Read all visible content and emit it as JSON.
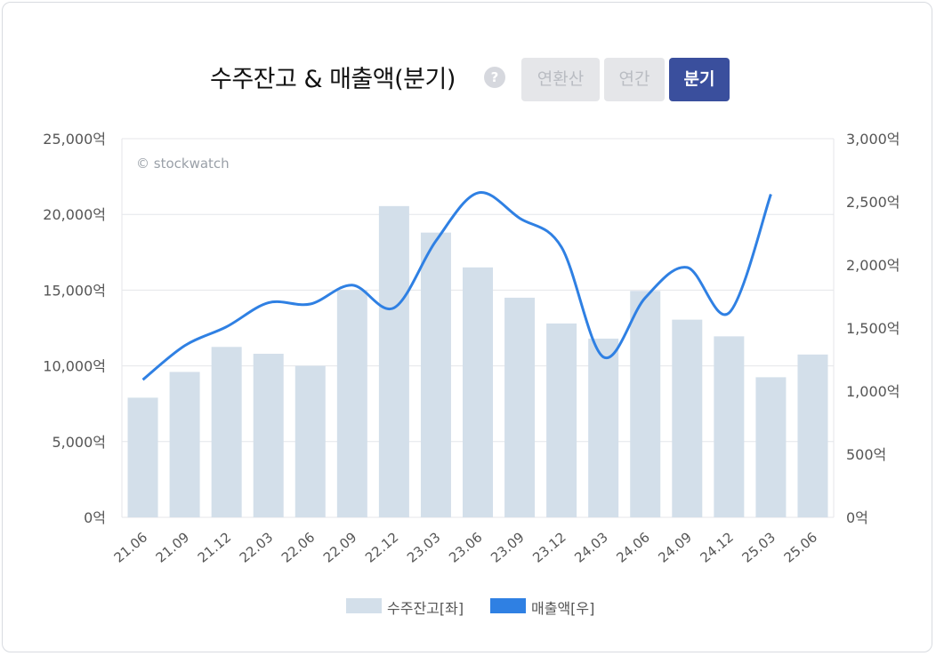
{
  "header": {
    "title": "수주잔고 & 매출액(분기)",
    "help_icon": "?",
    "segments": [
      "연환산",
      "연간",
      "분기"
    ],
    "active_segment": "분기"
  },
  "colors": {
    "bar": "#d3dfea",
    "line": "#2f80e3",
    "grid": "#e4e6ea",
    "active_tab": "#3a4f9d"
  },
  "chart_data": {
    "type": "bar",
    "title": "수주잔고 & 매출액(분기)",
    "watermark": "© stockwatch",
    "categories": [
      "21.06",
      "21.09",
      "21.12",
      "22.03",
      "22.06",
      "22.09",
      "22.12",
      "23.03",
      "23.06",
      "23.09",
      "23.12",
      "24.03",
      "24.06",
      "24.09",
      "24.12",
      "25.03",
      "25.06"
    ],
    "series": [
      {
        "name": "수주잔고[좌]",
        "type": "bar",
        "axis": "left",
        "values": [
          7900,
          9600,
          11250,
          10800,
          10000,
          15000,
          20550,
          18800,
          16500,
          14500,
          12800,
          11800,
          14950,
          13050,
          11950,
          9250,
          10750
        ]
      },
      {
        "name": "매출액[우]",
        "type": "line",
        "axis": "right",
        "values": [
          1090,
          1360,
          1510,
          1700,
          1690,
          1840,
          1660,
          2190,
          2570,
          2370,
          2140,
          1270,
          1740,
          1980,
          1620,
          2560,
          null
        ]
      }
    ],
    "y_left": {
      "min": 0,
      "max": 25000,
      "ticks": [
        "0억",
        "5,000억",
        "10,000억",
        "15,000억",
        "20,000억",
        "25,000억"
      ]
    },
    "y_right": {
      "min": 0,
      "max": 3000,
      "ticks": [
        "0억",
        "500억",
        "1,000억",
        "1,500억",
        "2,000억",
        "2,500억",
        "3,000억"
      ]
    },
    "legend": [
      "수주잔고[좌]",
      "매출액[우]"
    ],
    "legend_position": "bottom"
  }
}
